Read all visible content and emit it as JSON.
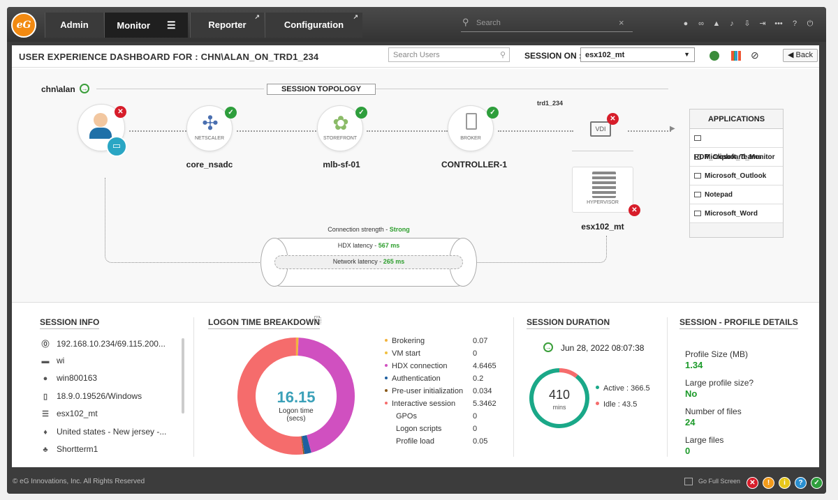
{
  "topnav": {
    "admin": "Admin",
    "monitor": "Monitor",
    "reporter": "Reporter",
    "configuration": "Configuration",
    "search_placeholder": "Search"
  },
  "header": {
    "title": "USER EXPERIENCE DASHBOARD FOR : CHN\\ALAN_ON_TRD1_234",
    "search_users_placeholder": "Search Users",
    "session_on_label": "SESSION ON :",
    "session_on_value": "esx102_mt",
    "back": "Back"
  },
  "topology": {
    "user": "chn\\alan",
    "title": "SESSION TOPOLOGY",
    "nodes": [
      {
        "name": "core_nsadc",
        "type": "NETSCALER",
        "status": "ok"
      },
      {
        "name": "mlb-sf-01",
        "type": "STOREFRONT",
        "status": "ok"
      },
      {
        "name": "CONTROLLER-1",
        "type": "BROKER",
        "status": "ok"
      }
    ],
    "vdi_host": "trd1_234",
    "vdi_label": "VDI",
    "hypervisor_label": "HYPERVISOR",
    "hypervisor_name": "esx102_mt",
    "connection_strength_label": "Connection strength - ",
    "connection_strength": "Strong",
    "hdx_label": "HDX latency - ",
    "hdx_value": "567 ms",
    "network_label": "Network latency - ",
    "network_value": "265 ms",
    "applications_title": "APPLICATIONS",
    "applications": [
      "RDP_Clipboard_Monitor",
      "Microsoft_Teams",
      "Microsoft_Outlook",
      "Notepad",
      "Microsoft_Word"
    ]
  },
  "session_info": {
    "title": "SESSION INFO",
    "items": [
      {
        "icon": "ip-icon",
        "text": "192.168.10.234/69.115.200..."
      },
      {
        "icon": "version-icon",
        "text": "wi"
      },
      {
        "icon": "user-icon",
        "text": "win800163"
      },
      {
        "icon": "receiver-icon",
        "text": "18.9.0.19526/Windows"
      },
      {
        "icon": "server-icon",
        "text": "esx102_mt"
      },
      {
        "icon": "location-pin-icon",
        "text": "United states - New jersey -..."
      },
      {
        "icon": "group-icon",
        "text": "Shortterm1"
      }
    ]
  },
  "logon": {
    "title": "LOGON TIME BREAKDOWN",
    "total": "16.15",
    "total_label": "Logon time",
    "total_unit": "(secs)",
    "items": [
      {
        "label": "Brokering",
        "value": "0.07",
        "color": "#f2b33d"
      },
      {
        "label": "VM start",
        "value": "0",
        "color": "#f0c040"
      },
      {
        "label": "HDX connection",
        "value": "4.6465",
        "color": "#d050c0"
      },
      {
        "label": "Authentication",
        "value": "0.2",
        "color": "#1f5fa0"
      },
      {
        "label": "Pre-user initialization",
        "value": "0.034",
        "color": "#8a5a1a"
      },
      {
        "label": "Interactive session",
        "value": "5.3462",
        "color": "#f56c6c"
      },
      {
        "label": "GPOs",
        "value": "0"
      },
      {
        "label": "Logon scripts",
        "value": "0"
      },
      {
        "label": "Profile load",
        "value": "0.05"
      }
    ]
  },
  "duration": {
    "title": "SESSION DURATION",
    "start": "Jun 28, 2022 08:07:38",
    "total": "410",
    "unit": "mins",
    "active_label": "Active : 366.5",
    "idle_label": "Idle : 43.5",
    "active": 366.5,
    "idle": 43.5
  },
  "profile": {
    "title": "SESSION - PROFILE DETAILS",
    "items": [
      {
        "label": "Profile Size (MB)",
        "value": "1.34"
      },
      {
        "label": "Large profile size?",
        "value": "No"
      },
      {
        "label": "Number of files",
        "value": "24"
      },
      {
        "label": "Large files",
        "value": "0"
      }
    ]
  },
  "footer": {
    "copyright": "© eG Innovations, Inc. All Rights Reserved",
    "go_full_screen": "Go Full Screen"
  },
  "chart_data": [
    {
      "type": "pie",
      "title": "LOGON TIME BREAKDOWN",
      "categories": [
        "Brokering",
        "VM start",
        "HDX connection",
        "Authentication",
        "Pre-user initialization",
        "Interactive session"
      ],
      "values": [
        0.07,
        0,
        4.6465,
        0.2,
        0.034,
        5.3462
      ]
    },
    {
      "type": "pie",
      "title": "SESSION DURATION",
      "categories": [
        "Active",
        "Idle"
      ],
      "values": [
        366.5,
        43.5
      ]
    }
  ]
}
